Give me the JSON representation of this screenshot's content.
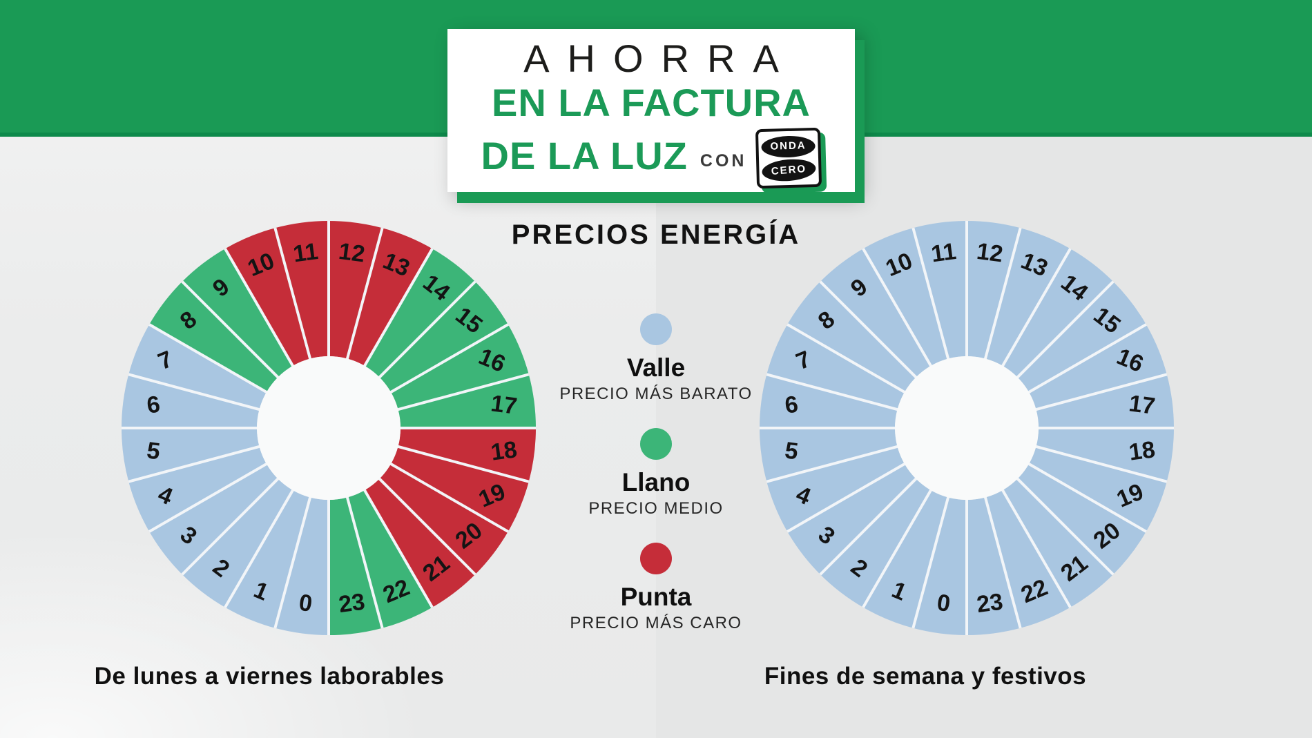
{
  "header": {
    "line1": "AHORRA",
    "line2": "EN LA FACTURA",
    "line3": "DE LA LUZ",
    "con": "CON",
    "logo": {
      "top": "ONDA",
      "bottom": "CERO"
    }
  },
  "subtitle": "PRECIOS ENERGÍA",
  "theme": {
    "band_green": "#1a9a55",
    "band_edge_green": "#0e8a4b",
    "title_green": "#1b9a57",
    "background_gray": "#ebecec",
    "donut_hole": "#f9fafa",
    "slice_divider": "#f2f5f8",
    "hour_label_color": "#141414"
  },
  "legend": {
    "items": [
      {
        "label": "Valle",
        "sublabel": "PRECIO MÁS BARATO",
        "color": "#a9c6e1",
        "period": "valle"
      },
      {
        "label": "Llano",
        "sublabel": "PRECIO MEDIO",
        "color": "#3cb578",
        "period": "llano"
      },
      {
        "label": "Punta",
        "sublabel": "PRECIO MÁS CARO",
        "color": "#c52d39",
        "period": "punta"
      }
    ]
  },
  "chart_data": [
    {
      "type": "pie",
      "subtype": "donut-24h-clock",
      "title": "De lunes a viernes laborables",
      "categories": [
        0,
        1,
        2,
        3,
        4,
        5,
        6,
        7,
        8,
        9,
        10,
        11,
        12,
        13,
        14,
        15,
        16,
        17,
        18,
        19,
        20,
        21,
        22,
        23
      ],
      "values": [
        1,
        1,
        1,
        1,
        1,
        1,
        1,
        1,
        1,
        1,
        1,
        1,
        1,
        1,
        1,
        1,
        1,
        1,
        1,
        1,
        1,
        1,
        1,
        1
      ],
      "slice_period": [
        "valle",
        "valle",
        "valle",
        "valle",
        "valle",
        "valle",
        "valle",
        "valle",
        "llano",
        "llano",
        "punta",
        "punta",
        "punta",
        "punta",
        "llano",
        "llano",
        "llano",
        "llano",
        "punta",
        "punta",
        "punta",
        "punta",
        "llano",
        "llano"
      ],
      "period_colors": {
        "valle": "#a9c6e1",
        "llano": "#3cb578",
        "punta": "#c52d39"
      },
      "layout": "hour 12 at top, hours clockwise, hour 0 at bottom",
      "legend_position": "center between charts"
    },
    {
      "type": "pie",
      "subtype": "donut-24h-clock",
      "title": "Fines de semana y festivos",
      "categories": [
        0,
        1,
        2,
        3,
        4,
        5,
        6,
        7,
        8,
        9,
        10,
        11,
        12,
        13,
        14,
        15,
        16,
        17,
        18,
        19,
        20,
        21,
        22,
        23
      ],
      "values": [
        1,
        1,
        1,
        1,
        1,
        1,
        1,
        1,
        1,
        1,
        1,
        1,
        1,
        1,
        1,
        1,
        1,
        1,
        1,
        1,
        1,
        1,
        1,
        1
      ],
      "slice_period": [
        "valle",
        "valle",
        "valle",
        "valle",
        "valle",
        "valle",
        "valle",
        "valle",
        "valle",
        "valle",
        "valle",
        "valle",
        "valle",
        "valle",
        "valle",
        "valle",
        "valle",
        "valle",
        "valle",
        "valle",
        "valle",
        "valle",
        "valle",
        "valle"
      ],
      "period_colors": {
        "valle": "#a9c6e1",
        "llano": "#3cb578",
        "punta": "#c52d39"
      },
      "layout": "hour 12 at top, hours clockwise, hour 0 at bottom",
      "legend_position": "center between charts"
    }
  ]
}
